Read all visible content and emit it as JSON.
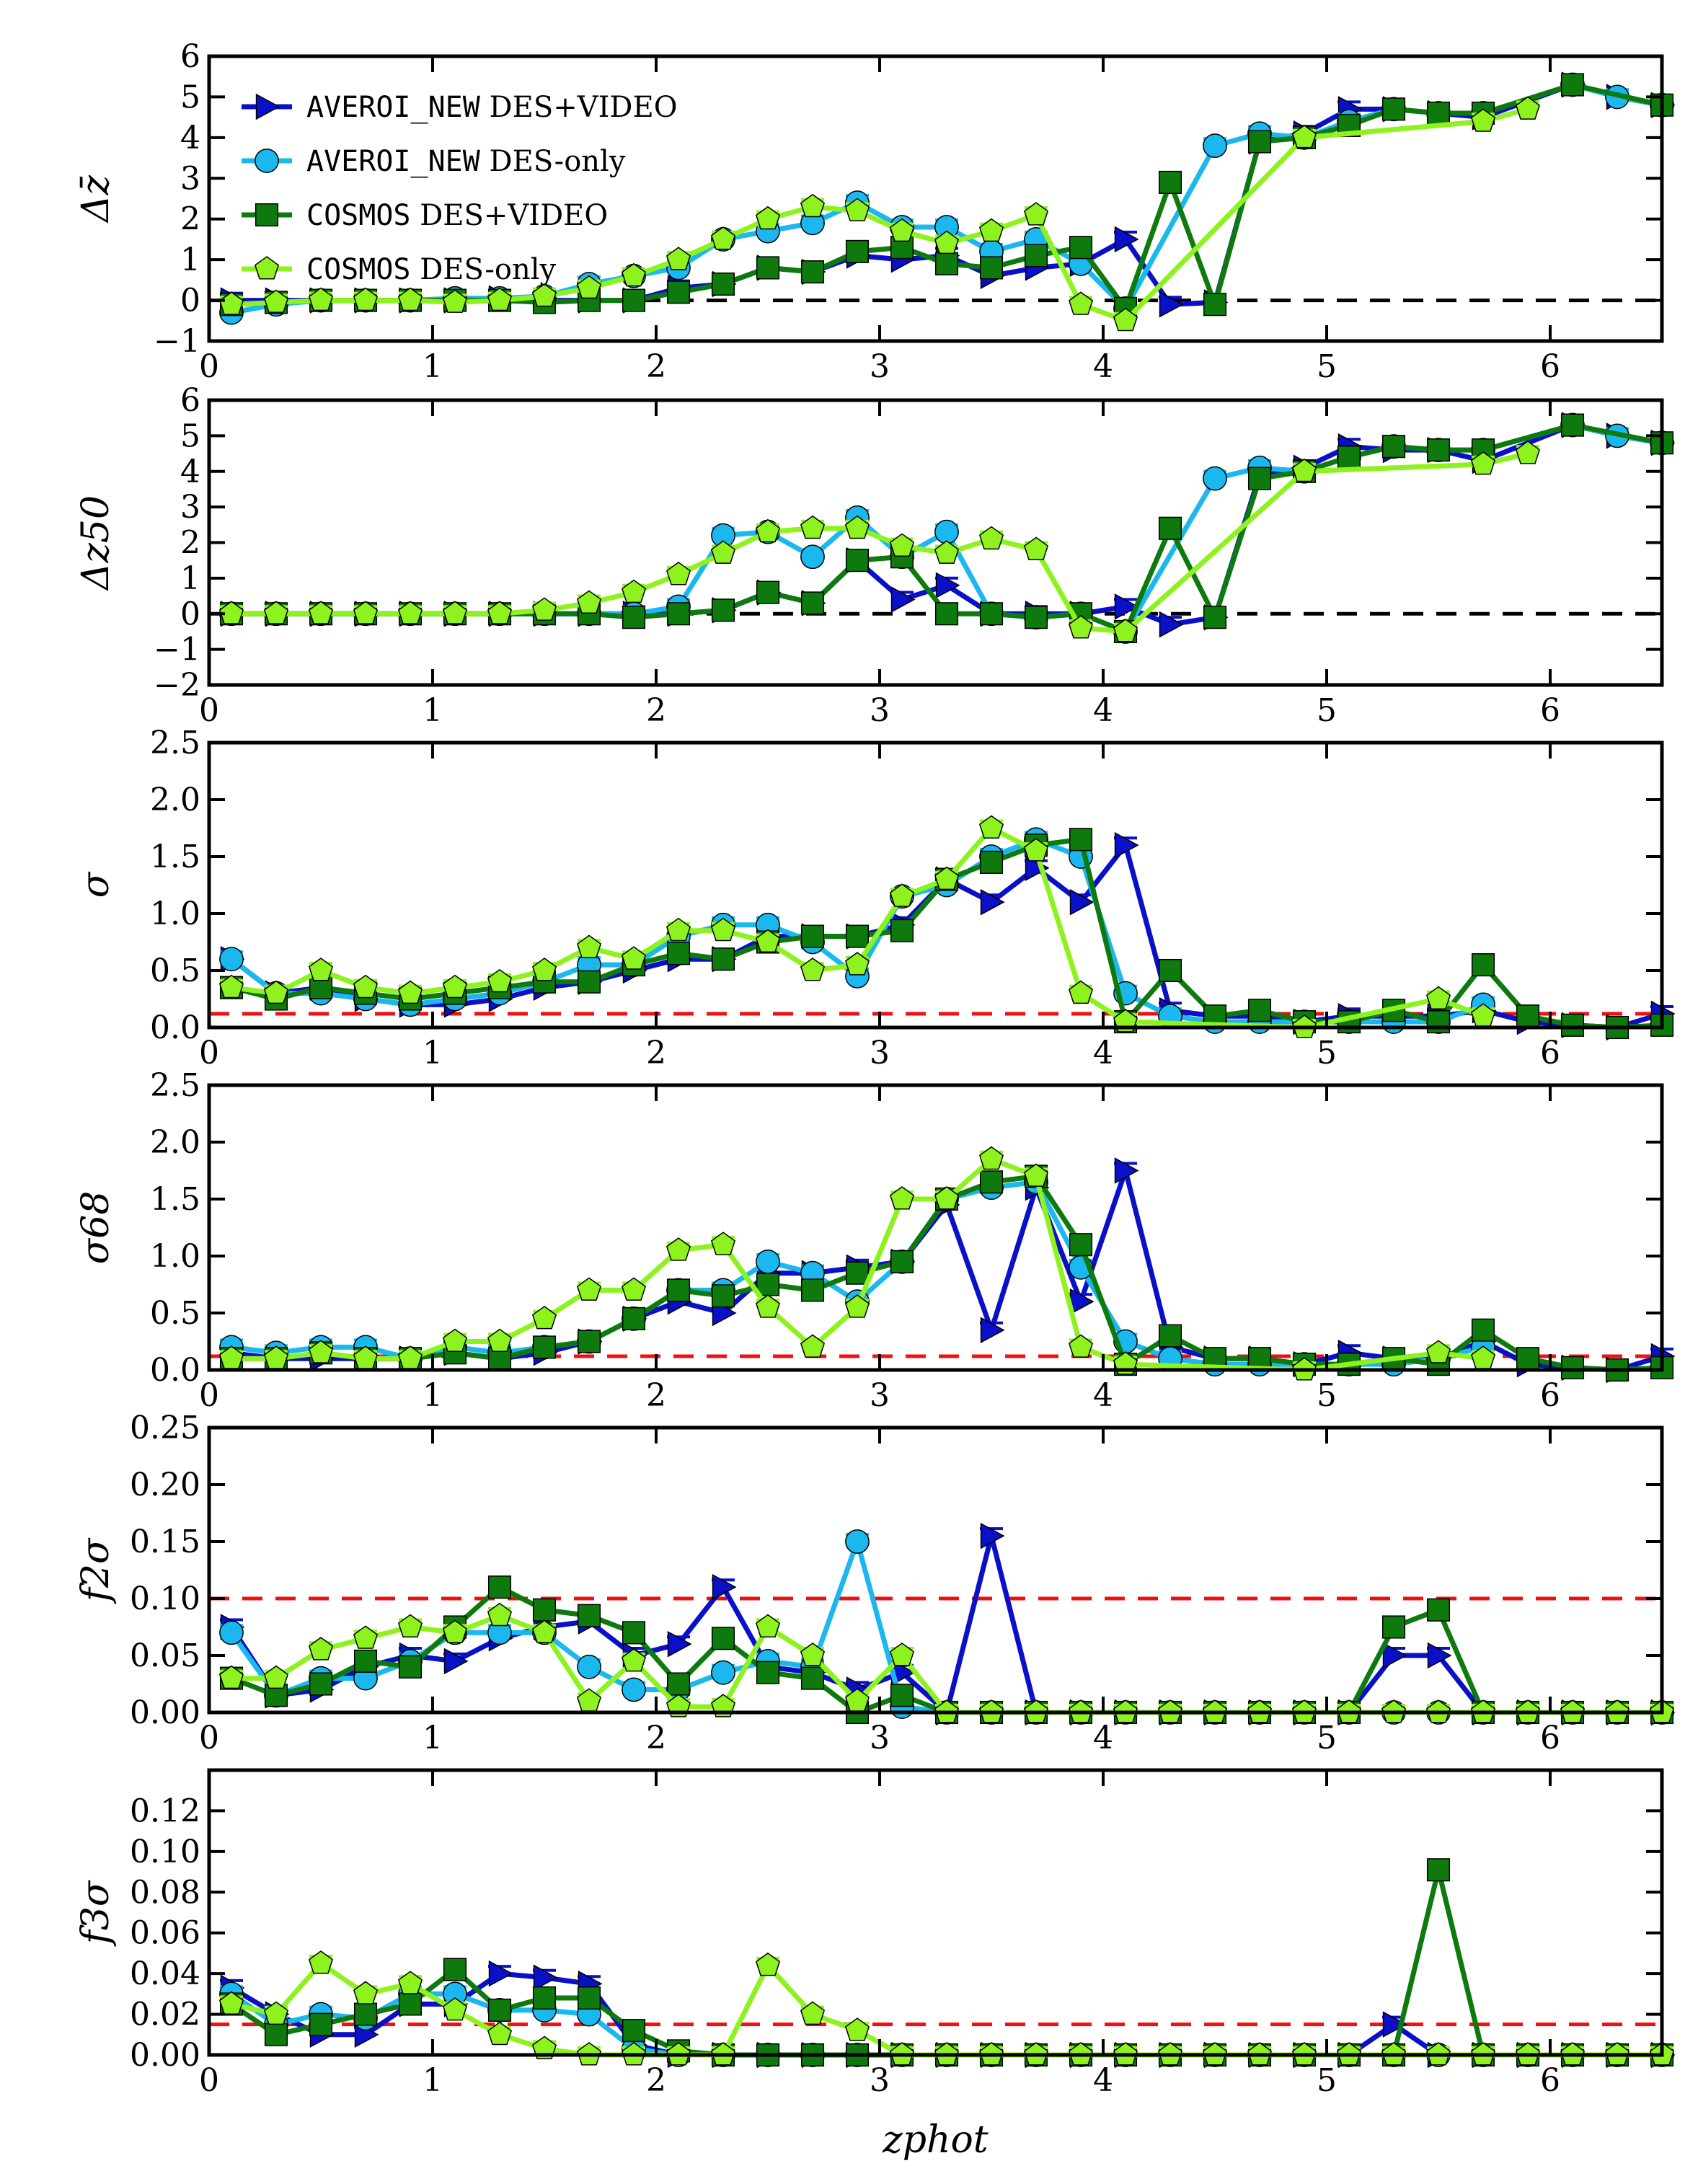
{
  "chart_data": {
    "type": "line",
    "xlabel": "zphot",
    "x": [
      0.1,
      0.3,
      0.5,
      0.7,
      0.9,
      1.1,
      1.3,
      1.5,
      1.7,
      1.9,
      2.1,
      2.3,
      2.5,
      2.7,
      2.9,
      3.1,
      3.3,
      3.5,
      3.7,
      3.9,
      4.1,
      4.3,
      4.5,
      4.7,
      4.9,
      5.1,
      5.3,
      5.5,
      5.7,
      5.9,
      6.1,
      6.3,
      6.5
    ],
    "xlim": [
      0,
      6.5
    ],
    "xticks": [
      "0",
      "1",
      "2",
      "3",
      "4",
      "5",
      "6"
    ],
    "legend": {
      "placement": "top-left",
      "entries": [
        {
          "catalog": "AVEROI_NEW",
          "label": " DES+VIDEO"
        },
        {
          "catalog": "AVEROI_NEW",
          "label": " DES-only"
        },
        {
          "catalog": "COSMOS",
          "label": " DES+VIDEO"
        },
        {
          "catalog": "COSMOS",
          "label": " DES-only"
        }
      ]
    },
    "series_style": [
      {
        "color": "#0a10c8",
        "marker": "triangle"
      },
      {
        "color": "#1ab8ee",
        "marker": "circle"
      },
      {
        "color": "#0e7a0e",
        "marker": "square"
      },
      {
        "color": "#8ef21e",
        "marker": "pentagon"
      }
    ],
    "reference_line_colors": [
      "#000000",
      "#ee1111"
    ],
    "panels": [
      {
        "ylabel": "Δz̄",
        "ylim": [
          -1,
          6
        ],
        "yticks": [
          "−1",
          "0",
          "1",
          "2",
          "3",
          "4",
          "5",
          "6"
        ],
        "reference": 0,
        "reference_color": "#000000",
        "series": [
          [
            0,
            0,
            0,
            0,
            0,
            0,
            0.05,
            0,
            0,
            0,
            0.3,
            0.4,
            0.8,
            0.7,
            1.1,
            1.0,
            1.1,
            0.6,
            0.8,
            0.9,
            1.5,
            -0.1,
            -0.05,
            3.9,
            4.1,
            4.7,
            4.7,
            4.6,
            4.5,
            null,
            5.3,
            5.0,
            4.8
          ],
          [
            -0.3,
            -0.1,
            0,
            0,
            0,
            0.05,
            0.05,
            0.1,
            0.4,
            0.6,
            0.8,
            1.5,
            1.7,
            1.9,
            2.4,
            1.8,
            1.8,
            1.2,
            1.5,
            0.9,
            -0.2,
            null,
            3.8,
            4.1,
            4.0,
            4.4,
            4.7,
            4.6,
            4.6,
            null,
            5.3,
            5.0,
            4.8
          ],
          [
            -0.1,
            -0.05,
            0,
            0,
            0,
            0,
            0,
            -0.05,
            0,
            0,
            0.2,
            0.4,
            0.8,
            0.7,
            1.2,
            1.3,
            0.9,
            0.8,
            1.1,
            1.3,
            -0.2,
            2.9,
            -0.1,
            3.9,
            4.0,
            4.3,
            4.7,
            4.6,
            4.6,
            null,
            5.3,
            null,
            4.8
          ],
          [
            -0.1,
            -0.05,
            0,
            0,
            0,
            -0.05,
            0,
            0.1,
            0.3,
            0.6,
            1.0,
            1.5,
            2.0,
            2.3,
            2.2,
            1.7,
            1.4,
            1.7,
            2.1,
            -0.1,
            -0.5,
            null,
            null,
            null,
            4.0,
            null,
            null,
            null,
            4.4,
            4.7,
            null,
            null,
            null
          ]
        ]
      },
      {
        "ylabel": "Δz50",
        "ylim": [
          -2,
          6
        ],
        "yticks": [
          "−2",
          "−1",
          "0",
          "1",
          "2",
          "3",
          "4",
          "5",
          "6"
        ],
        "reference": 0,
        "reference_color": "#000000",
        "series": [
          [
            0,
            0,
            0,
            0,
            0,
            0,
            0,
            0,
            0,
            0,
            0,
            0.1,
            0.6,
            0.3,
            1.5,
            0.4,
            0.8,
            0,
            0,
            0,
            0.2,
            -0.3,
            -0.1,
            3.9,
            4.1,
            4.7,
            4.6,
            4.6,
            4.3,
            null,
            5.3,
            5.0,
            4.8
          ],
          [
            0,
            0,
            0,
            0,
            0,
            0,
            0,
            0,
            0,
            0,
            0.2,
            2.2,
            2.3,
            1.6,
            2.7,
            1.6,
            2.3,
            0,
            -0.1,
            0,
            -0.5,
            null,
            3.8,
            4.1,
            4.0,
            4.4,
            4.7,
            4.6,
            4.6,
            null,
            5.3,
            5.0,
            4.8
          ],
          [
            0,
            0,
            0,
            0,
            0,
            0,
            0,
            0,
            0,
            -0.1,
            0,
            0.1,
            0.6,
            0.3,
            1.5,
            1.6,
            0,
            0,
            -0.1,
            0,
            -0.5,
            2.4,
            -0.1,
            3.8,
            4.0,
            4.4,
            4.7,
            4.6,
            4.6,
            null,
            5.3,
            null,
            4.8
          ],
          [
            0,
            0,
            0,
            0,
            0,
            0,
            0,
            0.1,
            0.3,
            0.6,
            1.1,
            1.7,
            2.3,
            2.4,
            2.4,
            1.9,
            1.7,
            2.1,
            1.8,
            -0.4,
            -0.5,
            null,
            null,
            null,
            4.0,
            null,
            null,
            null,
            4.2,
            4.5,
            null,
            null,
            null
          ]
        ]
      },
      {
        "ylabel": "σ",
        "ylim": [
          0,
          2.5
        ],
        "yticks": [
          "0.0",
          "0.5",
          "1.0",
          "1.5",
          "2.0",
          "2.5"
        ],
        "reference": 0.12,
        "reference_color": "#ee1111",
        "series": [
          [
            0.6,
            0.3,
            0.35,
            0.25,
            0.2,
            0.2,
            0.25,
            0.35,
            0.4,
            0.5,
            0.6,
            0.6,
            0.8,
            0.8,
            0.8,
            0.9,
            1.3,
            1.1,
            1.4,
            1.1,
            1.6,
            0.15,
            0.1,
            0.1,
            0.05,
            0.1,
            0.1,
            0.1,
            0.15,
            0.05,
            0.02,
            0,
            0.12
          ],
          [
            0.6,
            0.3,
            0.3,
            0.25,
            0.2,
            0.25,
            0.3,
            0.4,
            0.55,
            0.55,
            0.8,
            0.9,
            0.9,
            0.75,
            0.45,
            1.15,
            1.25,
            1.5,
            1.65,
            1.5,
            0.3,
            0.1,
            0.05,
            0.05,
            0.05,
            0.05,
            0.05,
            0.05,
            0.2,
            null,
            null,
            null,
            null
          ],
          [
            0.35,
            0.25,
            0.35,
            0.3,
            0.25,
            0.3,
            0.35,
            0.4,
            0.4,
            0.55,
            0.65,
            0.6,
            0.75,
            0.8,
            0.8,
            0.85,
            1.3,
            1.45,
            1.6,
            1.65,
            0.05,
            0.5,
            0.1,
            0.15,
            0.05,
            0.05,
            0.15,
            0.05,
            0.55,
            0.1,
            0.02,
            0,
            0.02
          ],
          [
            0.35,
            0.3,
            0.5,
            0.35,
            0.3,
            0.35,
            0.4,
            0.5,
            0.7,
            0.6,
            0.85,
            0.85,
            0.75,
            0.5,
            0.55,
            1.15,
            1.3,
            1.75,
            1.55,
            0.3,
            0.05,
            null,
            null,
            null,
            0,
            null,
            null,
            0.25,
            0.1,
            null,
            null,
            null,
            null
          ]
        ]
      },
      {
        "ylabel": "σ68",
        "ylim": [
          0,
          2.5
        ],
        "yticks": [
          "0.0",
          "0.5",
          "1.0",
          "1.5",
          "2.0",
          "2.5"
        ],
        "reference": 0.12,
        "reference_color": "#ee1111",
        "series": [
          [
            0.15,
            0.1,
            0.1,
            0.1,
            0.1,
            0.15,
            0.1,
            0.15,
            0.25,
            0.45,
            0.6,
            0.5,
            0.85,
            0.85,
            0.9,
            0.95,
            1.45,
            0.35,
            1.6,
            0.6,
            1.75,
            0.2,
            0.1,
            0.1,
            0.05,
            0.15,
            0.1,
            0.1,
            0.25,
            0.05,
            0.02,
            0,
            0.12
          ],
          [
            0.2,
            0.15,
            0.2,
            0.2,
            0.1,
            0.2,
            0.15,
            0.2,
            0.25,
            0.45,
            0.7,
            0.7,
            0.95,
            0.85,
            0.6,
            0.95,
            1.5,
            1.6,
            1.65,
            0.9,
            0.25,
            0.1,
            0.05,
            0.05,
            0.05,
            0.05,
            0.05,
            0.1,
            0.2,
            null,
            null,
            null,
            null
          ],
          [
            0.1,
            0.1,
            0.15,
            0.1,
            0.1,
            0.15,
            0.1,
            0.2,
            0.25,
            0.45,
            0.7,
            0.65,
            0.75,
            0.7,
            0.85,
            0.95,
            1.5,
            1.65,
            1.7,
            1.1,
            0.05,
            0.3,
            0.1,
            0.1,
            0.05,
            0.05,
            0.1,
            0.05,
            0.35,
            0.1,
            0.02,
            0,
            0.02
          ],
          [
            0.1,
            0.1,
            0.15,
            0.1,
            0.1,
            0.25,
            0.25,
            0.45,
            0.7,
            0.7,
            1.05,
            1.1,
            0.55,
            0.2,
            0.55,
            1.5,
            1.5,
            1.85,
            1.7,
            0.2,
            0.05,
            null,
            null,
            null,
            0,
            null,
            null,
            0.15,
            0.1,
            null,
            null,
            null,
            null
          ]
        ]
      },
      {
        "ylabel": "f2σ",
        "ylim": [
          0,
          0.25
        ],
        "yticks": [
          "0.00",
          "0.05",
          "0.10",
          "0.15",
          "0.20",
          "0.25"
        ],
        "reference": 0.1,
        "reference_color": "#ee1111",
        "series": [
          [
            0.075,
            0.015,
            0.02,
            0.04,
            0.05,
            0.045,
            0.065,
            0.075,
            0.08,
            0.05,
            0.06,
            0.11,
            0.04,
            0.035,
            0.02,
            0.035,
            0,
            0.155,
            0,
            0,
            0,
            0,
            0,
            0,
            0,
            0,
            0.05,
            0.05,
            0,
            0,
            0,
            0,
            0
          ],
          [
            0.07,
            0.015,
            0.03,
            0.03,
            0.045,
            0.07,
            0.07,
            0.07,
            0.04,
            0.02,
            0.02,
            0.035,
            0.045,
            0.04,
            0.15,
            0.005,
            0,
            0,
            0,
            0,
            0,
            0,
            0,
            0,
            0,
            0,
            0,
            0,
            0,
            0,
            0,
            0,
            0
          ],
          [
            0.03,
            0.015,
            0.025,
            0.045,
            0.04,
            0.075,
            0.11,
            0.09,
            0.085,
            0.07,
            0.025,
            0.065,
            0.035,
            0.03,
            0,
            0.015,
            0,
            0,
            0,
            0,
            0,
            0,
            0,
            0,
            0,
            0,
            0.075,
            0.09,
            0,
            0,
            0,
            0,
            0
          ],
          [
            0.03,
            0.03,
            0.055,
            0.065,
            0.075,
            0.07,
            0.085,
            0.07,
            0.01,
            0.045,
            0.005,
            0.005,
            0.075,
            0.05,
            0.01,
            0.05,
            0,
            0,
            0,
            0,
            0,
            0,
            0,
            0,
            0,
            0,
            0,
            0,
            0,
            0,
            0,
            0,
            0
          ]
        ]
      },
      {
        "ylabel": "f3σ",
        "ylim": [
          0,
          0.14
        ],
        "yticks": [
          "0.00",
          "0.02",
          "0.04",
          "0.06",
          "0.08",
          "0.10",
          "0.12"
        ],
        "reference": 0.015,
        "reference_color": "#ee1111",
        "series": [
          [
            0.033,
            0.02,
            0.01,
            0.01,
            0.025,
            0.025,
            0.04,
            0.038,
            0.035,
            0.005,
            0,
            0,
            0,
            0,
            0,
            0,
            0,
            0,
            0,
            0,
            0,
            0,
            0,
            0,
            0,
            0,
            0.015,
            0,
            0,
            0,
            0,
            0,
            0
          ],
          [
            0.03,
            0.015,
            0.02,
            0.018,
            0.03,
            0.03,
            0.022,
            0.022,
            0.02,
            0.003,
            0,
            0,
            0,
            0,
            0,
            0,
            0,
            0,
            0,
            0,
            0,
            0,
            0,
            0,
            0,
            0,
            0,
            0,
            0,
            0,
            0,
            0,
            0
          ],
          [
            0.025,
            0.01,
            0.015,
            0.02,
            0.025,
            0.042,
            0.022,
            0.028,
            0.028,
            0.012,
            0.002,
            0,
            0,
            0,
            0,
            0,
            0,
            0,
            0,
            0,
            0,
            0,
            0,
            0,
            0,
            0,
            0,
            0.091,
            0,
            0,
            0,
            0,
            0
          ],
          [
            0.025,
            0.02,
            0.045,
            0.03,
            0.035,
            0.022,
            0.01,
            0.003,
            0,
            0,
            0,
            0,
            0.044,
            0.02,
            0.012,
            0,
            0,
            0,
            0,
            0,
            0,
            0,
            0,
            0,
            0,
            0,
            0,
            0,
            0,
            0,
            0,
            0,
            0
          ]
        ]
      }
    ]
  }
}
